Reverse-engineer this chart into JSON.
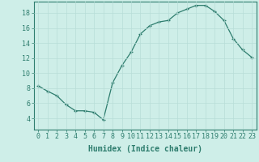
{
  "x": [
    0,
    1,
    2,
    3,
    4,
    5,
    6,
    7,
    8,
    9,
    10,
    11,
    12,
    13,
    14,
    15,
    16,
    17,
    18,
    19,
    20,
    21,
    22,
    23
  ],
  "y": [
    8.3,
    7.6,
    7.0,
    5.8,
    5.0,
    5.0,
    4.8,
    3.8,
    8.7,
    11.0,
    12.8,
    15.2,
    16.3,
    16.8,
    17.0,
    18.0,
    18.5,
    19.0,
    19.0,
    18.2,
    17.0,
    14.6,
    13.1,
    12.1
  ],
  "line_color": "#2e7d6e",
  "marker": "+",
  "marker_size": 3,
  "bg_color": "#ceeee8",
  "grid_color": "#b8ddd8",
  "xlabel": "Humidex (Indice chaleur)",
  "xlim": [
    -0.5,
    23.5
  ],
  "ylim": [
    2.5,
    19.5
  ],
  "yticks": [
    4,
    6,
    8,
    10,
    12,
    14,
    16,
    18
  ],
  "xticks": [
    0,
    1,
    2,
    3,
    4,
    5,
    6,
    7,
    8,
    9,
    10,
    11,
    12,
    13,
    14,
    15,
    16,
    17,
    18,
    19,
    20,
    21,
    22,
    23
  ],
  "xtick_labels": [
    "0",
    "1",
    "2",
    "3",
    "4",
    "5",
    "6",
    "7",
    "8",
    "9",
    "10",
    "11",
    "12",
    "13",
    "14",
    "15",
    "16",
    "17",
    "18",
    "19",
    "20",
    "21",
    "22",
    "23"
  ],
  "axis_color": "#2e7d6e",
  "tick_color": "#2e7d6e",
  "label_fontsize": 7,
  "tick_fontsize": 6
}
